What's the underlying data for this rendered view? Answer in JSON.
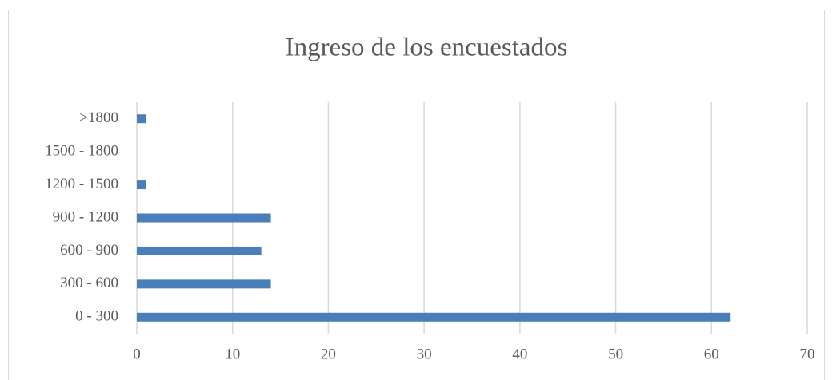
{
  "chart_data": {
    "type": "bar",
    "orientation": "horizontal",
    "title": "Ingreso de los encuestados",
    "categories": [
      "0 - 300",
      "300 - 600",
      "600 - 900",
      "900 - 1200",
      "1200 - 1500",
      "1500 - 1800",
      ">1800"
    ],
    "values": [
      62,
      14,
      13,
      14,
      1,
      0,
      1
    ],
    "color": "#4a7ebb",
    "xlim": [
      0,
      70
    ],
    "xticks": [
      0,
      10,
      20,
      30,
      40,
      50,
      60,
      70
    ],
    "grid": true
  }
}
